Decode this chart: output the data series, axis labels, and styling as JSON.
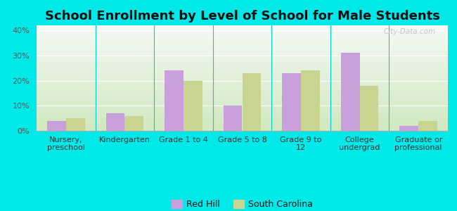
{
  "title": "School Enrollment by Level of School for Male Students",
  "categories": [
    "Nursery,\npreschool",
    "Kindergarten",
    "Grade 1 to 4",
    "Grade 5 to 8",
    "Grade 9 to\n12",
    "College\nundergrad",
    "Graduate or\nprofessional"
  ],
  "red_hill": [
    4,
    7,
    24,
    10,
    23,
    31,
    2
  ],
  "south_carolina": [
    5,
    6,
    20,
    23,
    24,
    18,
    4
  ],
  "red_hill_color": "#c9a0dc",
  "sc_color": "#c8d490",
  "background_outer": "#00e8e8",
  "ylim": [
    0,
    42
  ],
  "yticks": [
    0,
    10,
    20,
    30,
    40
  ],
  "title_fontsize": 13,
  "tick_fontsize": 8,
  "legend_fontsize": 9,
  "bar_width": 0.32,
  "watermark": "City-Data.com",
  "grad_top": "#f5faf5",
  "grad_bottom": "#d0e8c0"
}
